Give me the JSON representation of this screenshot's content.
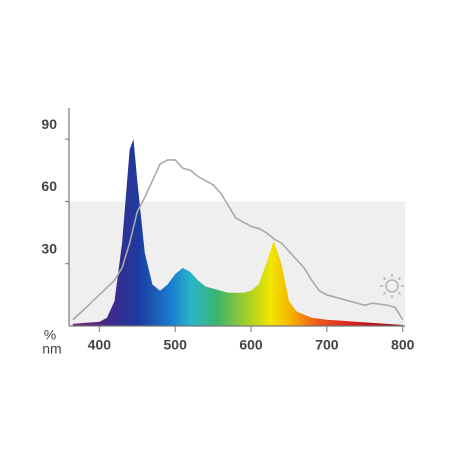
{
  "chart_data": {
    "type": "spectrum",
    "x_label": "nm",
    "y_label": "%",
    "xlim": [
      360,
      803
    ],
    "ylim": [
      0,
      105
    ],
    "xticks": [
      400,
      500,
      600,
      700,
      800
    ],
    "yticks": [
      30,
      60,
      90
    ],
    "bands": true,
    "series": [
      {
        "color": "rainbow",
        "fill": true,
        "x": [
          365,
          380,
          400,
          410,
          420,
          430,
          440,
          445,
          450,
          460,
          470,
          480,
          490,
          500,
          510,
          520,
          530,
          540,
          550,
          560,
          570,
          580,
          590,
          600,
          610,
          620,
          630,
          640,
          650,
          660,
          680,
          700,
          720,
          740,
          760,
          780,
          800
        ],
        "values": [
          1,
          1.5,
          2,
          4,
          12,
          40,
          85,
          90,
          70,
          35,
          20,
          17,
          20,
          25,
          28,
          26,
          22,
          19,
          18,
          17,
          16,
          16,
          16,
          17,
          20,
          30,
          41,
          30,
          12,
          7,
          4,
          3,
          2.5,
          2,
          1.5,
          1,
          0.5
        ]
      },
      {
        "color": "#a9a9a9",
        "fill": false,
        "x": [
          365,
          380,
          400,
          420,
          430,
          440,
          450,
          460,
          470,
          480,
          490,
          500,
          510,
          520,
          530,
          540,
          550,
          560,
          570,
          580,
          590,
          600,
          610,
          620,
          630,
          640,
          650,
          660,
          670,
          680,
          690,
          700,
          710,
          720,
          730,
          740,
          750,
          760,
          780,
          790,
          800
        ],
        "values": [
          3,
          8,
          15,
          22,
          28,
          40,
          55,
          62,
          70,
          78,
          80,
          80,
          76,
          75,
          72,
          70,
          68,
          64,
          58,
          52,
          50,
          48,
          47,
          45,
          42,
          40,
          36,
          32,
          28,
          22,
          17,
          15,
          14,
          13,
          12,
          11,
          10,
          11,
          10,
          9,
          3
        ]
      }
    ]
  }
}
